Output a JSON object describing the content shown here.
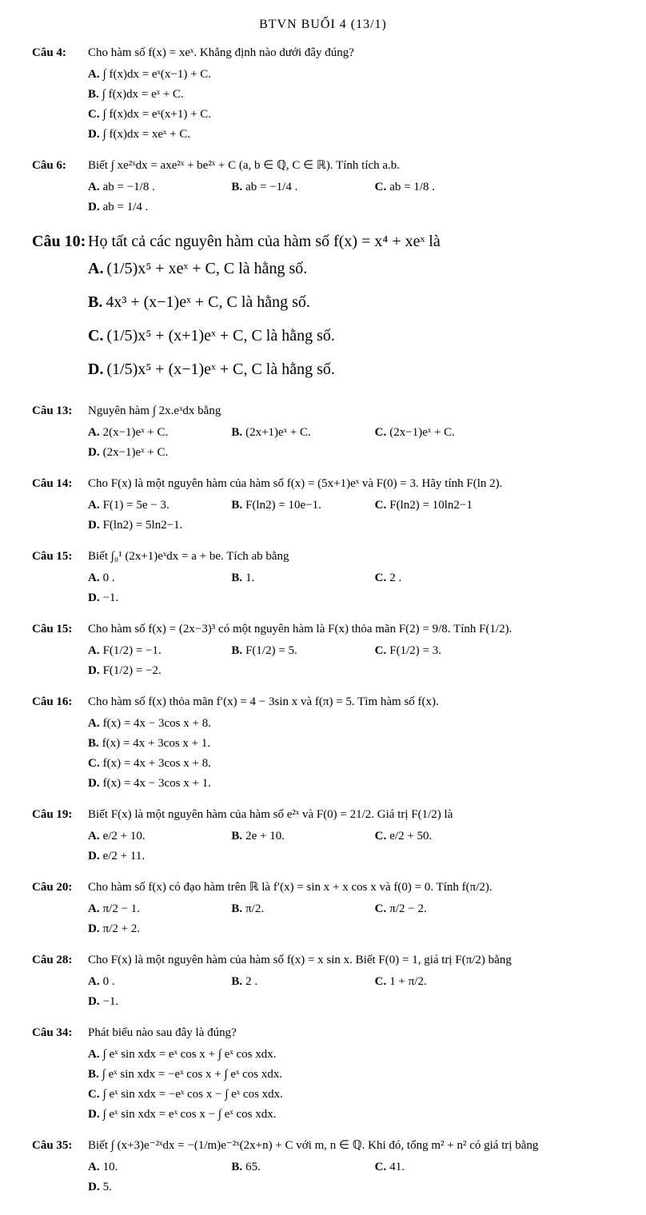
{
  "header": "BTVN BUỔI 4 (13/1)",
  "questions": [
    {
      "num": "Câu 4:",
      "text": "Cho hàm số  f(x) = xeˣ.  Khẳng định nào dưới đây đúng?",
      "choices": [
        {
          "l": "A.",
          "t": "∫ f(x)dx = eˣ(x−1) + C.",
          "w": "half"
        },
        {
          "l": "B.",
          "t": "∫ f(x)dx = eˣ + C.",
          "w": "half"
        },
        {
          "l": "C.",
          "t": "∫ f(x)dx = eˣ(x+1) + C.",
          "w": "half"
        },
        {
          "l": "D.",
          "t": "∫ f(x)dx = xeˣ + C.",
          "w": "half"
        }
      ]
    },
    {
      "num": "Câu 6:",
      "text": "Biết ∫ xe²ˣdx = axe²ˣ + be²ˣ + C  (a, b ∈ ℚ, C ∈ ℝ). Tính tích  a.b.",
      "choices": [
        {
          "l": "A.",
          "t": "ab = −1/8 .",
          "w": "quarter"
        },
        {
          "l": "B.",
          "t": "ab = −1/4 .",
          "w": "quarter"
        },
        {
          "l": "C.",
          "t": "ab = 1/8 .",
          "w": "quarter"
        },
        {
          "l": "D.",
          "t": "ab = 1/4 .",
          "w": "quarter"
        }
      ]
    },
    {
      "num": "Câu 10:",
      "big": true,
      "text": "Họ tất cả các nguyên hàm của hàm số  f(x) = x⁴ + xeˣ  là",
      "choices": [
        {
          "l": "A.",
          "t": "(1/5)x⁵ + xeˣ + C,   C là hằng số.",
          "w": "full"
        },
        {
          "l": "B.",
          "t": "4x³ + (x−1)eˣ + C,   C là hằng số.",
          "w": "full"
        },
        {
          "l": "C.",
          "t": "(1/5)x⁵ + (x+1)eˣ + C,   C là hằng số.",
          "w": "full"
        },
        {
          "l": "D.",
          "t": "(1/5)x⁵ + (x−1)eˣ + C,   C là hằng số.",
          "w": "full"
        }
      ]
    },
    {
      "num": "Câu 13:",
      "text": "Nguyên hàm ∫ 2x.eˣdx bằng",
      "choices": [
        {
          "l": "A.",
          "t": "2(x−1)eˣ + C.",
          "w": "quarter"
        },
        {
          "l": "B.",
          "t": "(2x+1)eˣ + C.",
          "w": "quarter"
        },
        {
          "l": "C.",
          "t": "(2x−1)eˣ + C.",
          "w": "quarter"
        },
        {
          "l": "D.",
          "t": "(2x−1)eˣ + C.",
          "w": "quarter"
        }
      ]
    },
    {
      "num": "Câu 14:",
      "text": "Cho F(x) là một nguyên hàm của hàm số f(x) = (5x+1)eˣ và F(0) = 3. Hãy tính F(ln 2).",
      "choices": [
        {
          "l": "A.",
          "t": "F(1) = 5e − 3.",
          "w": "quarter"
        },
        {
          "l": "B.",
          "t": "F(ln2) = 10e−1.",
          "w": "quarter"
        },
        {
          "l": "C.",
          "t": "F(ln2) = 10ln2−1",
          "w": "quarter"
        },
        {
          "l": "D.",
          "t": "F(ln2) = 5ln2−1.",
          "w": "quarter"
        }
      ]
    },
    {
      "num": "Câu 15:",
      "text": "Biết ∫₀¹ (2x+1)eˣdx = a + be. Tích ab bằng",
      "choices": [
        {
          "l": "A.",
          "t": "0 .",
          "w": "quarter"
        },
        {
          "l": "B.",
          "t": "1.",
          "w": "quarter"
        },
        {
          "l": "C.",
          "t": "2 .",
          "w": "quarter"
        },
        {
          "l": "D.",
          "t": "−1.",
          "w": "quarter"
        }
      ]
    },
    {
      "num": "Câu 15:",
      "text": "Cho hàm số f(x) = (2x−3)³ có một nguyên hàm là F(x) thỏa mãn F(2) = 9/8. Tính F(1/2).",
      "choices": [
        {
          "l": "A.",
          "t": "F(1/2) = −1.",
          "w": "quarter"
        },
        {
          "l": "B.",
          "t": "F(1/2) = 5.",
          "w": "quarter"
        },
        {
          "l": "C.",
          "t": "F(1/2) = 3.",
          "w": "quarter"
        },
        {
          "l": "D.",
          "t": "F(1/2) = −2.",
          "w": "quarter"
        }
      ]
    },
    {
      "num": "Câu 16:",
      "text": "Cho hàm số f(x) thỏa mãn f′(x) = 4 − 3sin x và f(π) = 5. Tìm hàm số f(x).",
      "choices": [
        {
          "l": "A.",
          "t": "f(x) = 4x − 3cos x + 8.",
          "w": "half"
        },
        {
          "l": "B.",
          "t": "f(x) = 4x + 3cos x + 1.",
          "w": "half"
        },
        {
          "l": "C.",
          "t": "f(x) = 4x + 3cos x + 8.",
          "w": "half"
        },
        {
          "l": "D.",
          "t": "f(x) = 4x − 3cos x + 1.",
          "w": "half"
        }
      ]
    },
    {
      "num": "Câu 19:",
      "text": "Biết F(x) là một nguyên hàm của hàm số e²ˣ và F(0) = 21/2. Giá trị F(1/2) là",
      "choices": [
        {
          "l": "A.",
          "t": "e/2 + 10.",
          "w": "quarter"
        },
        {
          "l": "B.",
          "t": "2e + 10.",
          "w": "quarter"
        },
        {
          "l": "C.",
          "t": "e/2 + 50.",
          "w": "quarter"
        },
        {
          "l": "D.",
          "t": "e/2 + 11.",
          "w": "quarter"
        }
      ]
    },
    {
      "num": "Câu 20:",
      "text": "Cho hàm số f(x) có đạo hàm trên ℝ là f′(x) = sin x + x cos x và f(0) = 0. Tính f(π/2).",
      "choices": [
        {
          "l": "A.",
          "t": "π/2 − 1.",
          "w": "quarter"
        },
        {
          "l": "B.",
          "t": "π/2.",
          "w": "quarter"
        },
        {
          "l": "C.",
          "t": "π/2 − 2.",
          "w": "quarter"
        },
        {
          "l": "D.",
          "t": "π/2 + 2.",
          "w": "quarter"
        }
      ]
    },
    {
      "num": "Câu 28:",
      "text": "Cho F(x) là một nguyên hàm của hàm số f(x) = x sin x. Biết F(0) = 1, giá trị F(π/2) bằng",
      "choices": [
        {
          "l": "A.",
          "t": "0 .",
          "w": "quarter"
        },
        {
          "l": "B.",
          "t": "2 .",
          "w": "quarter"
        },
        {
          "l": "C.",
          "t": "1 + π/2.",
          "w": "quarter"
        },
        {
          "l": "D.",
          "t": "−1.",
          "w": "quarter"
        }
      ]
    },
    {
      "num": "Câu 34:",
      "text": "Phát biểu nào sau đây là đúng?",
      "choices": [
        {
          "l": "A.",
          "t": "∫ eˣ sin xdx = eˣ cos x + ∫ eˣ cos xdx.",
          "w": "half"
        },
        {
          "l": "B.",
          "t": "∫ eˣ sin xdx = −eˣ cos x + ∫ eˣ cos xdx.",
          "w": "half"
        },
        {
          "l": "C.",
          "t": "∫ eˣ sin xdx = −eˣ cos x − ∫ eˣ cos xdx.",
          "w": "half"
        },
        {
          "l": "D.",
          "t": "∫ eˣ sin xdx = eˣ cos x − ∫ eˣ cos xdx.",
          "w": "half"
        }
      ]
    },
    {
      "num": "Câu 35:",
      "text": "Biết ∫ (x+3)e⁻²ˣdx = −(1/m)e⁻²ˣ(2x+n) + C với m, n ∈ ℚ. Khi đó, tổng m² + n² có giá trị bằng",
      "choices": [
        {
          "l": "A.",
          "t": "10.",
          "w": "quarter"
        },
        {
          "l": "B.",
          "t": "65.",
          "w": "quarter"
        },
        {
          "l": "C.",
          "t": "41.",
          "w": "quarter"
        },
        {
          "l": "D.",
          "t": "5.",
          "w": "quarter"
        }
      ]
    }
  ]
}
